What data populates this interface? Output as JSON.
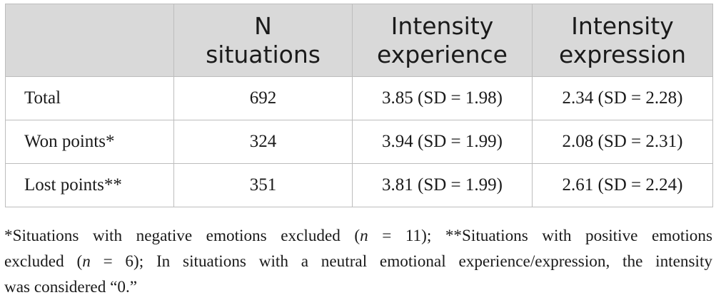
{
  "table": {
    "columns": [
      {
        "line1": "",
        "line2": ""
      },
      {
        "line1": "N",
        "line2": "situations"
      },
      {
        "line1": "Intensity",
        "line2": "experience"
      },
      {
        "line1": "Intensity",
        "line2": "expression"
      }
    ],
    "rows": [
      {
        "label": "Total",
        "n": "692",
        "experience": "3.85 (SD = 1.98)",
        "expression": "2.34 (SD = 2.28)"
      },
      {
        "label": "Won points*",
        "n": "324",
        "experience": "3.94 (SD = 1.99)",
        "expression": "2.08 (SD = 2.31)"
      },
      {
        "label": "Lost points**",
        "n": "351",
        "experience": "3.81 (SD = 1.99)",
        "expression": "2.61 (SD = 2.24)"
      }
    ]
  },
  "footnote": {
    "l1_a": "*Situations with negative emotions excluded (",
    "l1_n": "n",
    "l1_b": " = 11); **Situations with positive emotions",
    "l2_a": "excluded (",
    "l2_n": "n",
    "l2_b": " = 6); In situations with a neutral emotional experience/expression, the intensity",
    "l3": "was considered “0.”"
  }
}
